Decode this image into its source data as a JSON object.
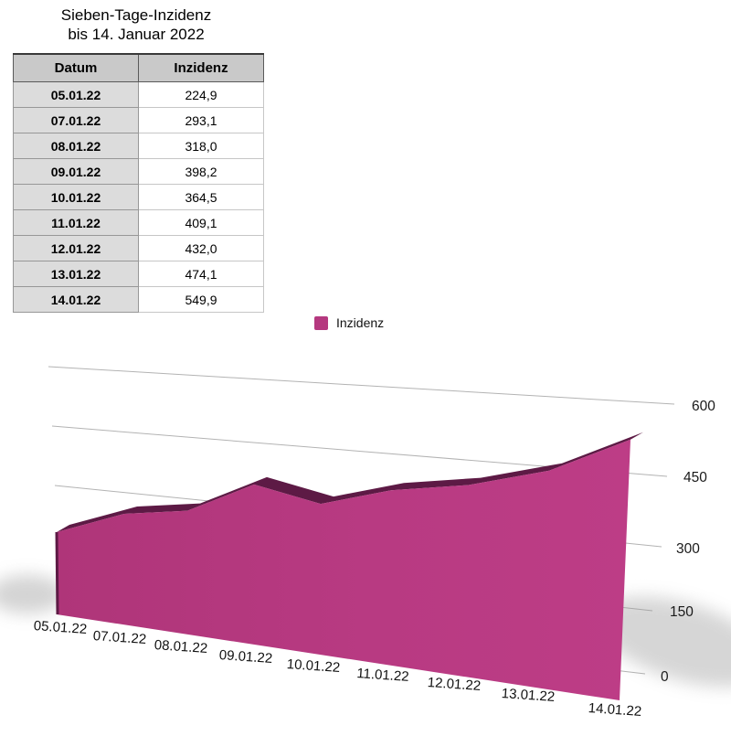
{
  "title": {
    "line1": "Sieben-Tage-Inzidenz",
    "line2": "bis 14. Januar 2022"
  },
  "table": {
    "headers": [
      "Datum",
      "Inzidenz"
    ],
    "rows": [
      [
        "05.01.22",
        "224,9"
      ],
      [
        "07.01.22",
        "293,1"
      ],
      [
        "08.01.22",
        "318,0"
      ],
      [
        "09.01.22",
        "398,2"
      ],
      [
        "10.01.22",
        "364,5"
      ],
      [
        "11.01.22",
        "409,1"
      ],
      [
        "12.01.22",
        "432,0"
      ],
      [
        "13.01.22",
        "474,1"
      ],
      [
        "14.01.22",
        "549,9"
      ]
    ]
  },
  "legend": {
    "label": "Inzidenz",
    "swatch_color": "#B5387F"
  },
  "chart_data": {
    "type": "area",
    "style": "3d",
    "title": "Sieben-Tage-Inzidenz bis 14. Januar 2022",
    "categories": [
      "05.01.22",
      "07.01.22",
      "08.01.22",
      "09.01.22",
      "10.01.22",
      "11.01.22",
      "12.01.22",
      "13.01.22",
      "14.01.22"
    ],
    "series": [
      {
        "name": "Inzidenz",
        "values": [
          224.9,
          293.1,
          318.0,
          398.2,
          364.5,
          409.1,
          432.0,
          474.1,
          549.9
        ]
      }
    ],
    "xlabel": "",
    "ylabel": "",
    "ylim": [
      0,
      600
    ],
    "y_ticks_top_to_bottom": [
      "600",
      "450",
      "300",
      "150",
      "0"
    ],
    "grid": true,
    "legend_position": "top"
  },
  "colors": {
    "area_fill": "#B73981",
    "area_fill_light": "#BD3D86",
    "area_fill_dark": "#AF3579",
    "ribbon_dark": "#5D1A45",
    "grid_line": "#b3b3b3",
    "header_bg": "#C9C9C9",
    "date_col_bg": "#DCDCDC",
    "axis_text": "#1a1a1a"
  }
}
